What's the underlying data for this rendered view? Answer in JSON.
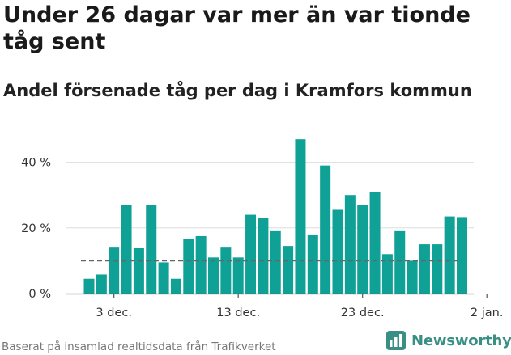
{
  "title": "Under 26 dagar var mer än var tionde tåg sent",
  "subtitle": "Andel försenade tåg per dag i Kramfors kommun",
  "source": "Baserat på insamlad realtidsdata från Trafikverket",
  "brand": {
    "name": "Newsworthy",
    "icon": "newsworthy-logo-icon",
    "color": "#3a8f84"
  },
  "colors": {
    "bar": "#0fa195",
    "reference_line": "#666666",
    "grid": "#dddddd"
  },
  "chart_data": {
    "type": "bar",
    "title": "Under 26 dagar var mer än var tionde tåg sent",
    "subtitle": "Andel försenade tåg per dag i Kramfors kommun",
    "xlabel": "",
    "ylabel": "",
    "ylim": [
      0,
      50
    ],
    "y_ticks": [
      0,
      20,
      40
    ],
    "y_tick_labels": [
      "0 %",
      "20 %",
      "40 %"
    ],
    "x_ticks": [
      {
        "label": "3 dec.",
        "index": 2
      },
      {
        "label": "13 dec.",
        "index": 12
      },
      {
        "label": "23 dec.",
        "index": 22
      },
      {
        "label": "2 jan.",
        "index": 32
      }
    ],
    "reference_line": {
      "value": 10,
      "style": "dashed"
    },
    "grid": true,
    "categories": [
      "1 dec.",
      "2 dec.",
      "3 dec.",
      "4 dec.",
      "5 dec.",
      "6 dec.",
      "7 dec.",
      "8 dec.",
      "9 dec.",
      "10 dec.",
      "11 dec.",
      "12 dec.",
      "13 dec.",
      "14 dec.",
      "15 dec.",
      "16 dec.",
      "17 dec.",
      "18 dec.",
      "19 dec.",
      "20 dec.",
      "21 dec.",
      "22 dec.",
      "23 dec.",
      "24 dec.",
      "25 dec.",
      "26 dec.",
      "27 dec.",
      "28 dec.",
      "29 dec.",
      "30 dec.",
      "31 dec."
    ],
    "values": [
      4.5,
      5.8,
      14,
      27,
      13.8,
      27,
      9.5,
      4.5,
      16.5,
      17.5,
      11,
      14,
      11,
      24,
      23,
      19,
      14.5,
      47,
      18,
      39,
      25.5,
      30,
      27,
      31,
      12,
      19,
      10,
      15,
      15,
      23.5,
      23.3
    ]
  }
}
